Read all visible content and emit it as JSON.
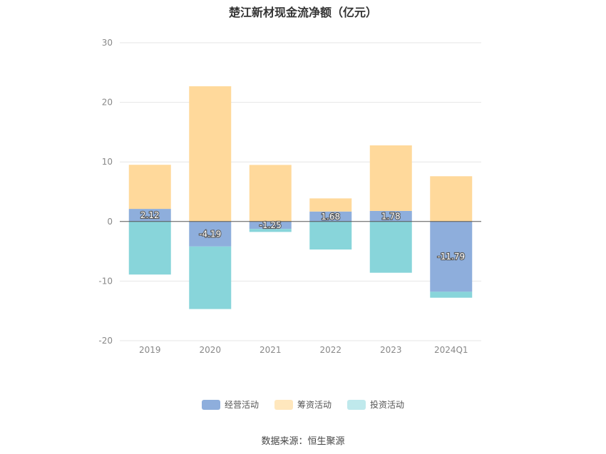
{
  "chart_data": {
    "type": "bar",
    "stacked": true,
    "title": "楚江新材现金流净额（亿元）",
    "categories": [
      "2019",
      "2020",
      "2021",
      "2022",
      "2023",
      "2024Q1"
    ],
    "ylim": [
      -20,
      30
    ],
    "yticks": [
      -20,
      -10,
      0,
      10,
      20,
      30
    ],
    "grid": true,
    "legend_position": "bottom",
    "series": [
      {
        "name": "经营活动",
        "color": "#8eaedc",
        "values": [
          2.12,
          -4.19,
          -1.25,
          1.68,
          1.78,
          -11.79
        ]
      },
      {
        "name": "筹资活动",
        "color": "#ffd99b",
        "values": [
          7.4,
          22.7,
          9.5,
          2.2,
          11.0,
          7.6
        ]
      },
      {
        "name": "投资活动",
        "color": "#88d5da",
        "values": [
          -8.9,
          -10.5,
          -0.5,
          -4.7,
          -8.6,
          -1.0
        ]
      }
    ],
    "data_label_series": "经营活动"
  },
  "source_text": "数据来源：恒生聚源"
}
